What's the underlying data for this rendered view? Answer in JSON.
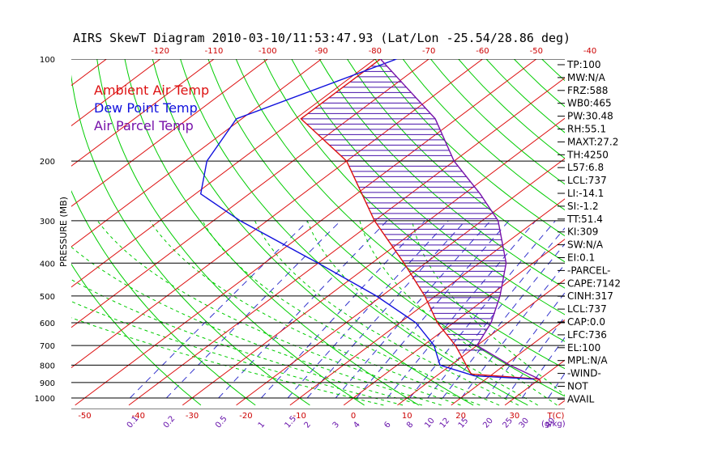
{
  "chart_data": {
    "type": "line",
    "title": "AIRS SkewT Diagram 2010-03-10/11:53:47.93 (Lat/Lon -25.54/28.86 deg)",
    "ylabel": "PRESSURE (MB)",
    "y_scale": "log",
    "ylim": [
      1000,
      100
    ],
    "pressure_ticks": [
      100,
      200,
      300,
      400,
      500,
      600,
      700,
      800,
      900,
      1000
    ],
    "bottom_temp_ticks": [
      -50,
      -40,
      -30,
      -20,
      -10,
      0,
      10,
      20,
      30
    ],
    "bottom_temp_unit": "T(C)",
    "top_temp_ticks": [
      -120,
      -110,
      -100,
      -90,
      -80,
      -70,
      -60,
      -50,
      -40
    ],
    "mixing_ratio_ticks": [
      "0.1",
      "0.2",
      "0.5",
      "1",
      "1.5",
      "2",
      "3",
      "4",
      "6",
      "8",
      "10",
      "12",
      "15",
      "20",
      "25",
      "30",
      "40"
    ],
    "mixing_ratio_unit": "(g/kg)",
    "legend": [
      {
        "name": "Ambient Air Temp",
        "color": "#dd1111"
      },
      {
        "name": "Dew Point Temp",
        "color": "#1111dd"
      },
      {
        "name": "Air Parcel Temp",
        "color": "#7711aa"
      }
    ],
    "series": [
      {
        "name": "Ambient Air Temp",
        "color": "#dd1111",
        "points": [
          [
            100,
            -79
          ],
          [
            150,
            -79
          ],
          [
            200,
            -60
          ],
          [
            250,
            -49
          ],
          [
            300,
            -40
          ],
          [
            400,
            -24
          ],
          [
            500,
            -12
          ],
          [
            600,
            -3
          ],
          [
            700,
            6
          ],
          [
            850,
            16
          ],
          [
            880,
            30
          ],
          [
            900,
            31
          ]
        ]
      },
      {
        "name": "Dew Point Temp",
        "color": "#1111dd",
        "points": [
          [
            100,
            -76
          ],
          [
            150,
            -91
          ],
          [
            200,
            -86
          ],
          [
            250,
            -79
          ],
          [
            300,
            -65
          ],
          [
            400,
            -40
          ],
          [
            500,
            -21
          ],
          [
            600,
            -7
          ],
          [
            700,
            2
          ],
          [
            800,
            8
          ],
          [
            860,
            17
          ],
          [
            880,
            29
          ]
        ]
      },
      {
        "name": "Air Parcel Temp",
        "color": "#7711aa",
        "points": [
          [
            100,
            -79
          ],
          [
            150,
            -54
          ],
          [
            200,
            -40
          ],
          [
            250,
            -27
          ],
          [
            300,
            -17
          ],
          [
            400,
            -5
          ],
          [
            500,
            2
          ],
          [
            600,
            7
          ],
          [
            700,
            10
          ],
          [
            800,
            21
          ],
          [
            880,
            30
          ]
        ]
      }
    ],
    "indices": [
      "TP:100",
      "MW:N/A",
      "FRZ:588",
      "WB0:465",
      "PW:30.48",
      "RH:55.1",
      "MAXT:27.2",
      "TH:4250",
      "L57:6.8",
      "LCL:737",
      "LI:-14.1",
      "SI:-1.2",
      "TT:51.4",
      "KI:309",
      "SW:N/A",
      "EI:0.1",
      "-PARCEL-",
      "CAPE:7142",
      "CINH:317",
      "LCL:737",
      "CAP:0.0",
      "LFC:736",
      "EL:100",
      "MPL:N/A",
      "-WIND-",
      "NOT",
      "AVAIL"
    ]
  },
  "colors": {
    "isotherm": "#dd1111",
    "dry_adiabat": "#00cc00",
    "moist_adiabat": "#00cc00",
    "mixing_ratio": "#3333cc",
    "isobar": "#000000",
    "hatch": "#4411aa",
    "top_tick_labels": "#cc0000",
    "bottom_tick_labels": "#cc0000",
    "mixing_labels": "#6611aa"
  }
}
